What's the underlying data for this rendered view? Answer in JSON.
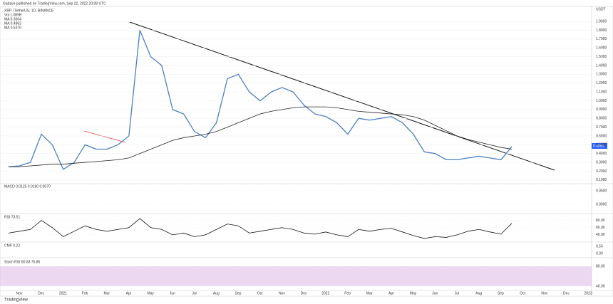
{
  "header": "Gadave published on TradingView.com, Sep 22, 2022 20:08 UTC",
  "footer": "TradingView",
  "time_axis": [
    "Nov",
    "Dec",
    "2021",
    "Feb",
    "Mar",
    "Apr",
    "May",
    "Jun",
    "Jul",
    "Aug",
    "Sep",
    "Oct",
    "Nov",
    "Dec",
    "2022",
    "Feb",
    "Mar",
    "Apr",
    "May",
    "Jun",
    "Jul",
    "Aug",
    "Sep",
    "Oct",
    "Nov",
    "Dec",
    "2023"
  ],
  "chart_data": [
    {
      "type": "line",
      "title": "XRP / TetherUS, 1D, BINANCE",
      "unit": "USDT",
      "legend": [
        "Vol 1.089B",
        "MA 0.3664",
        "MA 0.4862",
        "MA 0.5370"
      ],
      "last_price_label": "0.4860",
      "ylim": [
        0.05,
        1.95
      ],
      "yticks": [
        {
          "value": 1.9,
          "label": "1.9000"
        },
        {
          "value": 1.8,
          "label": "1.8000"
        },
        {
          "value": 1.7,
          "label": "1.7000"
        },
        {
          "value": 1.6,
          "label": "1.6000"
        },
        {
          "value": 1.5,
          "label": "1.5000"
        },
        {
          "value": 1.4,
          "label": "1.4000"
        },
        {
          "value": 1.3,
          "label": "1.3000"
        },
        {
          "value": 1.2,
          "label": "1.2000"
        },
        {
          "value": 1.1,
          "label": "1.1000"
        },
        {
          "value": 1.0,
          "label": "1.0000"
        },
        {
          "value": 0.9,
          "label": "0.9000"
        },
        {
          "value": 0.8,
          "label": "0.8000"
        },
        {
          "value": 0.7,
          "label": "0.7000"
        },
        {
          "value": 0.6,
          "label": "0.6000"
        },
        {
          "value": 0.5,
          "label": "0.5000"
        },
        {
          "value": 0.4,
          "label": "0.4000"
        },
        {
          "value": 0.3,
          "label": "0.3000"
        },
        {
          "value": 0.2,
          "label": "0.2000"
        },
        {
          "value": 0.1,
          "label": "0.1000"
        }
      ],
      "series": [
        {
          "color": "#4a7fc1",
          "values": [
            0.25,
            0.26,
            0.3,
            0.62,
            0.5,
            0.22,
            0.3,
            0.5,
            0.45,
            0.45,
            0.5,
            0.6,
            1.8,
            1.5,
            1.4,
            0.9,
            0.85,
            0.65,
            0.58,
            0.75,
            1.25,
            1.3,
            1.1,
            1.0,
            1.1,
            1.15,
            1.1,
            0.95,
            0.85,
            0.82,
            0.75,
            0.62,
            0.8,
            0.78,
            0.8,
            0.82,
            0.75,
            0.62,
            0.42,
            0.4,
            0.33,
            0.33,
            0.35,
            0.37,
            0.35,
            0.33,
            0.48
          ]
        },
        {
          "color": "#222222",
          "values": [
            0.25,
            0.25,
            0.26,
            0.27,
            0.28,
            0.28,
            0.29,
            0.3,
            0.31,
            0.32,
            0.33,
            0.35,
            0.4,
            0.45,
            0.5,
            0.55,
            0.58,
            0.6,
            0.62,
            0.65,
            0.7,
            0.75,
            0.8,
            0.85,
            0.88,
            0.9,
            0.92,
            0.93,
            0.93,
            0.93,
            0.92,
            0.9,
            0.88,
            0.87,
            0.86,
            0.85,
            0.84,
            0.82,
            0.78,
            0.72,
            0.66,
            0.6,
            0.56,
            0.53,
            0.5,
            0.47,
            0.45
          ]
        }
      ]
    },
    {
      "type": "line",
      "title": "RSI 73.51",
      "ylim": [
        20,
        95
      ],
      "yticks": [
        {
          "value": 80,
          "label": "80.00"
        },
        {
          "value": 60,
          "label": "60.00"
        },
        {
          "value": 40,
          "label": "40.00"
        }
      ],
      "series": [
        {
          "color": "#111111",
          "values": [
            45,
            50,
            55,
            80,
            60,
            35,
            50,
            65,
            55,
            50,
            55,
            60,
            85,
            60,
            55,
            40,
            45,
            35,
            40,
            55,
            70,
            65,
            45,
            50,
            55,
            60,
            55,
            45,
            42,
            48,
            40,
            35,
            55,
            50,
            55,
            58,
            48,
            38,
            30,
            35,
            33,
            40,
            50,
            55,
            48,
            42,
            72
          ]
        }
      ]
    }
  ],
  "indicators": {
    "macd": {
      "title": "MACD 0.0125 0.0190 0.0070",
      "ticks": [
        {
          "value": 0.05,
          "label": "0.0500"
        },
        {
          "value": 0,
          "label": "0.0000"
        }
      ]
    },
    "cmf": {
      "title": "CMF 0.23",
      "ticks": [
        {
          "value": 0.5,
          "label": "0.50"
        },
        {
          "value": 0,
          "label": "0.00"
        }
      ]
    },
    "stoch": {
      "title": "Stoch RSI 80.83 76.85",
      "ticks": [
        {
          "value": 80,
          "label": "80.00"
        },
        {
          "value": 40,
          "label": "40.00"
        }
      ]
    }
  }
}
